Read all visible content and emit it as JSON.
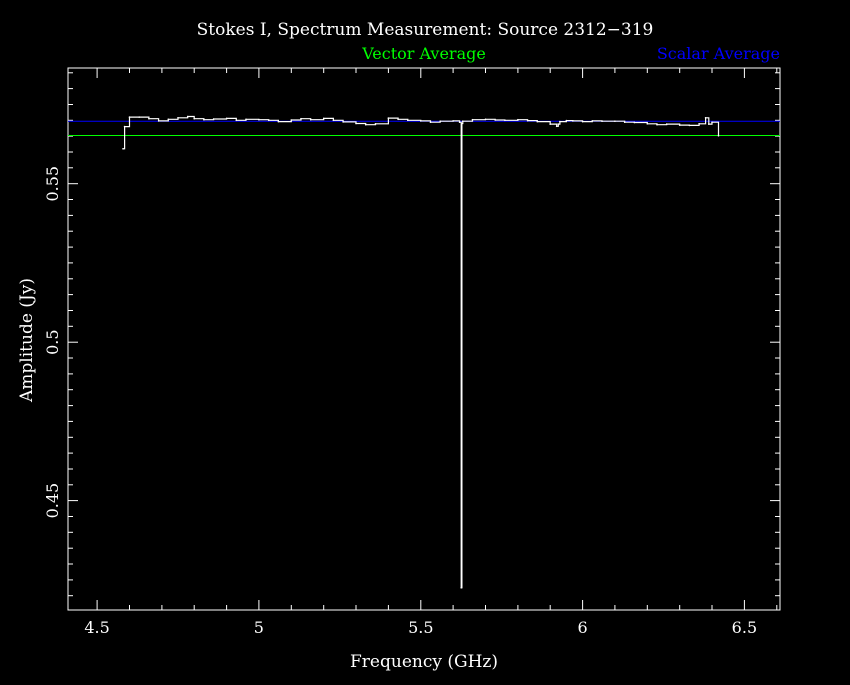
{
  "chart_data": {
    "type": "line",
    "title": "Stokes I, Spectrum Measurement: Source 2312−319",
    "xlabel": "Frequency (GHz)",
    "ylabel": "Amplitude (Jy)",
    "xlim": [
      4.41,
      6.61
    ],
    "ylim": [
      0.4155,
      0.5865
    ],
    "x_ticks": [
      4.5,
      5,
      5.5,
      6,
      6.5
    ],
    "x_tick_labels": [
      "4.5",
      "5",
      "5.5",
      "6",
      "6.5"
    ],
    "y_ticks": [
      0.45,
      0.5,
      0.55
    ],
    "y_tick_labels": [
      "0.45",
      "0.5",
      "0.55"
    ],
    "grid": false,
    "legend": [
      {
        "label": "Vector Average",
        "color": "#00ff00",
        "position": "top-center"
      },
      {
        "label": "Scalar Average",
        "color": "#0000ff",
        "position": "top-right"
      }
    ],
    "averages": {
      "vector_average": {
        "y": 0.5652,
        "color": "#00ff00"
      },
      "scalar_average": {
        "y": 0.5697,
        "color": "#0000ff"
      }
    },
    "series": [
      {
        "color": "#ffffff",
        "x": [
          4.58,
          4.585,
          4.6,
          4.63,
          4.66,
          4.69,
          4.72,
          4.75,
          4.78,
          4.8,
          4.83,
          4.86,
          4.9,
          4.93,
          4.96,
          5.0,
          5.03,
          5.06,
          5.1,
          5.13,
          5.16,
          5.2,
          5.23,
          5.26,
          5.3,
          5.33,
          5.36,
          5.4,
          5.43,
          5.46,
          5.5,
          5.53,
          5.56,
          5.6,
          5.62,
          5.625,
          5.627,
          5.63,
          5.66,
          5.7,
          5.73,
          5.76,
          5.8,
          5.83,
          5.86,
          5.9,
          5.92,
          5.925,
          5.93,
          5.95,
          5.97,
          6.0,
          6.03,
          6.06,
          6.1,
          6.13,
          6.16,
          6.2,
          6.23,
          6.26,
          6.3,
          6.33,
          6.36,
          6.38,
          6.39,
          6.4,
          6.42
        ],
        "y": [
          0.561,
          0.568,
          0.571,
          0.571,
          0.5705,
          0.5698,
          0.5703,
          0.5708,
          0.5712,
          0.5705,
          0.5702,
          0.5704,
          0.5706,
          0.57,
          0.5703,
          0.5702,
          0.57,
          0.5696,
          0.5701,
          0.5705,
          0.5702,
          0.5706,
          0.57,
          0.5695,
          0.569,
          0.5686,
          0.5689,
          0.5707,
          0.5703,
          0.57,
          0.5698,
          0.5694,
          0.5697,
          0.5698,
          0.5694,
          0.4225,
          0.569,
          0.5697,
          0.5702,
          0.5703,
          0.5701,
          0.57,
          0.5702,
          0.5699,
          0.5696,
          0.5688,
          0.5681,
          0.5688,
          0.5696,
          0.5699,
          0.5698,
          0.5696,
          0.5698,
          0.5697,
          0.5697,
          0.5694,
          0.5693,
          0.5689,
          0.5686,
          0.5688,
          0.5685,
          0.5684,
          0.5689,
          0.5708,
          0.5688,
          0.5694,
          0.5651
        ]
      }
    ]
  }
}
